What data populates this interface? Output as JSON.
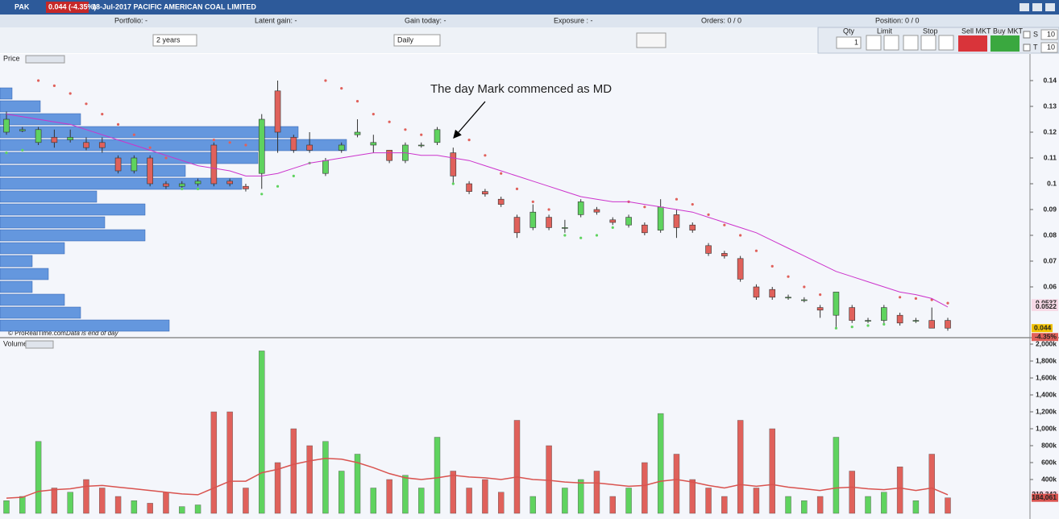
{
  "header": {
    "symbol": "PAK",
    "quote": "0.044 (-4.35%)",
    "title": "18-Jul-2017 PACIFIC AMERICAN COAL LIMITED"
  },
  "info_bar": [
    "Portfolio: -",
    "Latent gain: -",
    "Gain today: -",
    "Exposure : -",
    "Orders: 0 / 0",
    "Position: 0 / 0"
  ],
  "controls": {
    "period": "2 years",
    "interval": "Daily"
  },
  "order_panel": {
    "qty_label": "Qty",
    "qty": "1",
    "limit": "Limit",
    "stop": "Stop",
    "sell": "Sell MKT",
    "buy": "Buy MKT",
    "s_label": "S",
    "s_value": "10",
    "t_label": "T",
    "t_value": "10"
  },
  "chart_data": [
    {
      "type": "candlestick",
      "title": "Price",
      "annotation": "The day Mark commenced as MD",
      "credit": "© ProRealTime.com",
      "credit_note": "Data is end of day",
      "up_color": "#5fd35f",
      "down_color": "#e0615b",
      "ma_color": "#cc33cc",
      "ylim": [
        0.04,
        0.14625
      ],
      "yticks": [
        0.06,
        0.07,
        0.08,
        0.09,
        0.1,
        0.11,
        0.12,
        0.13,
        0.14
      ],
      "open": [
        0.12,
        0.1205,
        0.116,
        0.118,
        0.117,
        0.116,
        0.116,
        0.11,
        0.105,
        0.11,
        0.1,
        0.099,
        0.1,
        0.115,
        0.101,
        0.099,
        0.104,
        0.136,
        0.118,
        0.115,
        0.104,
        0.113,
        0.119,
        0.115,
        0.113,
        0.109,
        0.115,
        0.116,
        0.112,
        0.1,
        0.097,
        0.094,
        0.087,
        0.083,
        0.087,
        0.083,
        0.088,
        0.09,
        0.086,
        0.084,
        0.084,
        0.082,
        0.088,
        0.084,
        0.076,
        0.073,
        0.071,
        0.06,
        0.059,
        0.056,
        0.055,
        0.052,
        0.049,
        0.052,
        0.047,
        0.047,
        0.049,
        0.047,
        0.047,
        0.047
      ],
      "high": [
        0.128,
        0.122,
        0.122,
        0.121,
        0.121,
        0.118,
        0.118,
        0.111,
        0.111,
        0.111,
        0.101,
        0.101,
        0.102,
        0.116,
        0.102,
        0.1,
        0.127,
        0.14,
        0.119,
        0.12,
        0.11,
        0.116,
        0.125,
        0.119,
        0.113,
        0.116,
        0.116,
        0.122,
        0.114,
        0.101,
        0.098,
        0.095,
        0.088,
        0.092,
        0.088,
        0.086,
        0.094,
        0.091,
        0.087,
        0.088,
        0.085,
        0.094,
        0.09,
        0.085,
        0.077,
        0.074,
        0.072,
        0.061,
        0.06,
        0.057,
        0.056,
        0.053,
        0.058,
        0.053,
        0.048,
        0.053,
        0.05,
        0.048,
        0.052,
        0.048
      ],
      "low": [
        0.119,
        0.12,
        0.115,
        0.114,
        0.116,
        0.113,
        0.112,
        0.104,
        0.104,
        0.099,
        0.098,
        0.098,
        0.099,
        0.099,
        0.099,
        0.097,
        0.098,
        0.112,
        0.112,
        0.112,
        0.103,
        0.112,
        0.118,
        0.112,
        0.108,
        0.108,
        0.114,
        0.115,
        0.1,
        0.096,
        0.095,
        0.091,
        0.079,
        0.082,
        0.082,
        0.081,
        0.087,
        0.088,
        0.084,
        0.083,
        0.08,
        0.081,
        0.079,
        0.081,
        0.072,
        0.071,
        0.062,
        0.055,
        0.055,
        0.055,
        0.054,
        0.048,
        0.044,
        0.046,
        0.046,
        0.046,
        0.045,
        0.046,
        0.044,
        0.043
      ],
      "close": [
        0.125,
        0.121,
        0.121,
        0.116,
        0.118,
        0.114,
        0.114,
        0.105,
        0.11,
        0.1,
        0.099,
        0.1,
        0.101,
        0.1,
        0.1,
        0.098,
        0.125,
        0.12,
        0.113,
        0.113,
        0.109,
        0.115,
        0.12,
        0.116,
        0.109,
        0.115,
        0.115,
        0.121,
        0.103,
        0.097,
        0.096,
        0.092,
        0.081,
        0.089,
        0.083,
        0.083,
        0.093,
        0.089,
        0.085,
        0.087,
        0.081,
        0.091,
        0.083,
        0.082,
        0.073,
        0.072,
        0.063,
        0.056,
        0.056,
        0.056,
        0.055,
        0.051,
        0.058,
        0.047,
        0.047,
        0.052,
        0.046,
        0.047,
        0.044,
        0.044
      ],
      "ma": [
        0.127,
        0.126,
        0.125,
        0.124,
        0.123,
        0.121,
        0.119,
        0.117,
        0.115,
        0.113,
        0.111,
        0.109,
        0.107,
        0.106,
        0.105,
        0.103,
        0.103,
        0.104,
        0.106,
        0.108,
        0.109,
        0.11,
        0.111,
        0.112,
        0.112,
        0.112,
        0.111,
        0.111,
        0.11,
        0.109,
        0.107,
        0.105,
        0.103,
        0.101,
        0.099,
        0.097,
        0.095,
        0.094,
        0.093,
        0.093,
        0.092,
        0.091,
        0.09,
        0.089,
        0.087,
        0.085,
        0.083,
        0.081,
        0.078,
        0.075,
        0.072,
        0.069,
        0.066,
        0.064,
        0.062,
        0.06,
        0.058,
        0.057,
        0.0555,
        0.0522
      ],
      "sar": [
        0.112,
        0.113,
        0.14,
        0.138,
        0.135,
        0.131,
        0.127,
        0.123,
        0.119,
        0.114,
        0.11,
        0.098,
        0.098,
        0.117,
        0.116,
        0.115,
        0.096,
        0.099,
        0.103,
        0.108,
        0.14,
        0.137,
        0.132,
        0.127,
        0.124,
        0.121,
        0.119,
        0.117,
        0.1,
        0.117,
        0.111,
        0.104,
        0.098,
        0.093,
        0.09,
        0.08,
        0.079,
        0.08,
        0.083,
        0.093,
        0.091,
        0.09,
        0.094,
        0.092,
        0.088,
        0.084,
        0.08,
        0.074,
        0.068,
        0.064,
        0.06,
        0.057,
        0.044,
        0.0445,
        0.045,
        0.0455,
        0.056,
        0.0555,
        0.055,
        0.0537
      ],
      "markers": [
        {
          "value": 0.0537,
          "label": "0.0537",
          "color": "#e0615b"
        },
        {
          "value": 0.0522,
          "label": "0.0522",
          "color": "#cc33cc"
        }
      ],
      "last": {
        "value": 0.044,
        "change": -4.35,
        "change_label": "-4.35%"
      },
      "volume_profile": {
        "color": "#4a86d8",
        "levels": [
          0.045,
          0.05,
          0.055,
          0.06,
          0.065,
          0.07,
          0.075,
          0.08,
          0.085,
          0.09,
          0.095,
          0.1,
          0.105,
          0.11,
          0.115,
          0.12,
          0.125,
          0.13,
          0.135
        ],
        "values": [
          210,
          100,
          80,
          40,
          60,
          40,
          80,
          180,
          130,
          180,
          120,
          300,
          230,
          320,
          430,
          370,
          100,
          50,
          15
        ]
      }
    },
    {
      "type": "bar",
      "title": "Volume",
      "ma_color": "#d9534f",
      "ylim": [
        0,
        2000000
      ],
      "yticks": [
        {
          "value": 400000,
          "label": "400k"
        },
        {
          "value": 600000,
          "label": "600k"
        },
        {
          "value": 800000,
          "label": "800k"
        },
        {
          "value": 1000000,
          "label": "1,000k"
        },
        {
          "value": 1200000,
          "label": "1,200k"
        },
        {
          "value": 1400000,
          "label": "1,400k"
        },
        {
          "value": 1600000,
          "label": "1,600k"
        },
        {
          "value": 1800000,
          "label": "1,800k"
        },
        {
          "value": 2000000,
          "label": "2,000k"
        }
      ],
      "values": [
        150000,
        200000,
        850000,
        300000,
        250000,
        400000,
        300000,
        200000,
        150000,
        120000,
        250000,
        80000,
        100000,
        1200000,
        1200000,
        300000,
        1920000,
        600000,
        1000000,
        800000,
        850000,
        500000,
        700000,
        300000,
        400000,
        450000,
        300000,
        900000,
        500000,
        300000,
        400000,
        250000,
        1100000,
        200000,
        800000,
        300000,
        400000,
        500000,
        200000,
        300000,
        600000,
        1180000,
        700000,
        400000,
        300000,
        200000,
        1100000,
        300000,
        1000000,
        200000,
        150000,
        200000,
        900000,
        500000,
        200000,
        250000,
        550000,
        150000,
        700000,
        184061
      ],
      "ma": [
        180000,
        190000,
        260000,
        280000,
        290000,
        320000,
        330000,
        310000,
        290000,
        270000,
        250000,
        230000,
        220000,
        300000,
        380000,
        380000,
        480000,
        520000,
        580000,
        620000,
        650000,
        640000,
        600000,
        540000,
        470000,
        420000,
        400000,
        420000,
        450000,
        430000,
        420000,
        400000,
        430000,
        400000,
        390000,
        370000,
        360000,
        360000,
        340000,
        320000,
        330000,
        380000,
        400000,
        370000,
        330000,
        300000,
        340000,
        320000,
        340000,
        310000,
        290000,
        270000,
        300000,
        310000,
        290000,
        280000,
        300000,
        270000,
        300000,
        219342
      ],
      "value_labels": {
        "last": "184,061",
        "ma_last": "219,342"
      }
    }
  ]
}
